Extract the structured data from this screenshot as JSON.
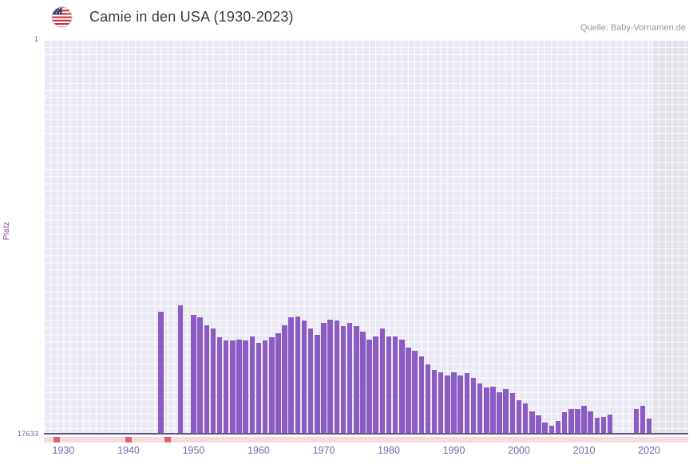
{
  "header": {
    "title": "Camie in den USA (1930-2023)",
    "source": "Quelle: Baby-Vornamen.de",
    "flag_icon": "us-flag-icon"
  },
  "y_axis": {
    "label": "Platz",
    "top_tick": "1",
    "bottom_tick": "17633"
  },
  "chart_data": {
    "type": "bar",
    "title": "Camie in den USA (1930-2023)",
    "xlabel": "",
    "ylabel": "Platz",
    "y_inverted": true,
    "y_min": 1,
    "y_max": 17633,
    "x_range": [
      1927.5,
      2026.5
    ],
    "x_ticks": [
      1930,
      1940,
      1950,
      1960,
      1970,
      1980,
      1990,
      2000,
      2010,
      2020
    ],
    "grid": true,
    "legend": null,
    "no_data_from_year": 2021,
    "missing_marker_years": [
      1929,
      1940,
      1946
    ],
    "points": [
      [
        1945,
        12200
      ],
      [
        1948,
        11900
      ],
      [
        1950,
        12350
      ],
      [
        1951,
        12450
      ],
      [
        1952,
        12800
      ],
      [
        1953,
        12950
      ],
      [
        1954,
        13350
      ],
      [
        1955,
        13500
      ],
      [
        1956,
        13500
      ],
      [
        1957,
        13450
      ],
      [
        1958,
        13500
      ],
      [
        1959,
        13300
      ],
      [
        1960,
        13600
      ],
      [
        1961,
        13500
      ],
      [
        1962,
        13350
      ],
      [
        1963,
        13150
      ],
      [
        1964,
        12800
      ],
      [
        1965,
        12450
      ],
      [
        1966,
        12400
      ],
      [
        1967,
        12600
      ],
      [
        1968,
        12950
      ],
      [
        1969,
        13250
      ],
      [
        1970,
        12700
      ],
      [
        1971,
        12550
      ],
      [
        1972,
        12600
      ],
      [
        1973,
        12850
      ],
      [
        1974,
        12700
      ],
      [
        1975,
        12850
      ],
      [
        1976,
        13100
      ],
      [
        1977,
        13450
      ],
      [
        1978,
        13300
      ],
      [
        1979,
        12950
      ],
      [
        1980,
        13300
      ],
      [
        1981,
        13300
      ],
      [
        1982,
        13450
      ],
      [
        1983,
        13800
      ],
      [
        1984,
        13950
      ],
      [
        1985,
        14200
      ],
      [
        1986,
        14550
      ],
      [
        1987,
        14800
      ],
      [
        1988,
        14900
      ],
      [
        1989,
        15050
      ],
      [
        1990,
        14900
      ],
      [
        1991,
        15050
      ],
      [
        1992,
        14950
      ],
      [
        1993,
        15150
      ],
      [
        1994,
        15400
      ],
      [
        1995,
        15600
      ],
      [
        1996,
        15550
      ],
      [
        1997,
        15800
      ],
      [
        1998,
        15650
      ],
      [
        1999,
        15850
      ],
      [
        2000,
        16150
      ],
      [
        2001,
        16300
      ],
      [
        2002,
        16650
      ],
      [
        2003,
        16850
      ],
      [
        2004,
        17150
      ],
      [
        2005,
        17300
      ],
      [
        2006,
        17100
      ],
      [
        2007,
        16700
      ],
      [
        2008,
        16550
      ],
      [
        2009,
        16550
      ],
      [
        2010,
        16400
      ],
      [
        2011,
        16650
      ],
      [
        2012,
        16950
      ],
      [
        2013,
        16900
      ],
      [
        2014,
        16800
      ],
      [
        2018,
        16550
      ],
      [
        2019,
        16400
      ],
      [
        2020,
        17000
      ]
    ],
    "colors": {
      "bar": "#8a5cc4",
      "plot_bg": "#eae8f3",
      "grid": "rgba(255,255,255,0.85)",
      "shaded_bg": "#e3e1e9",
      "strip": "#f7dade",
      "strip_marker": "#e0616e",
      "axis_text": "#7568ab"
    }
  }
}
